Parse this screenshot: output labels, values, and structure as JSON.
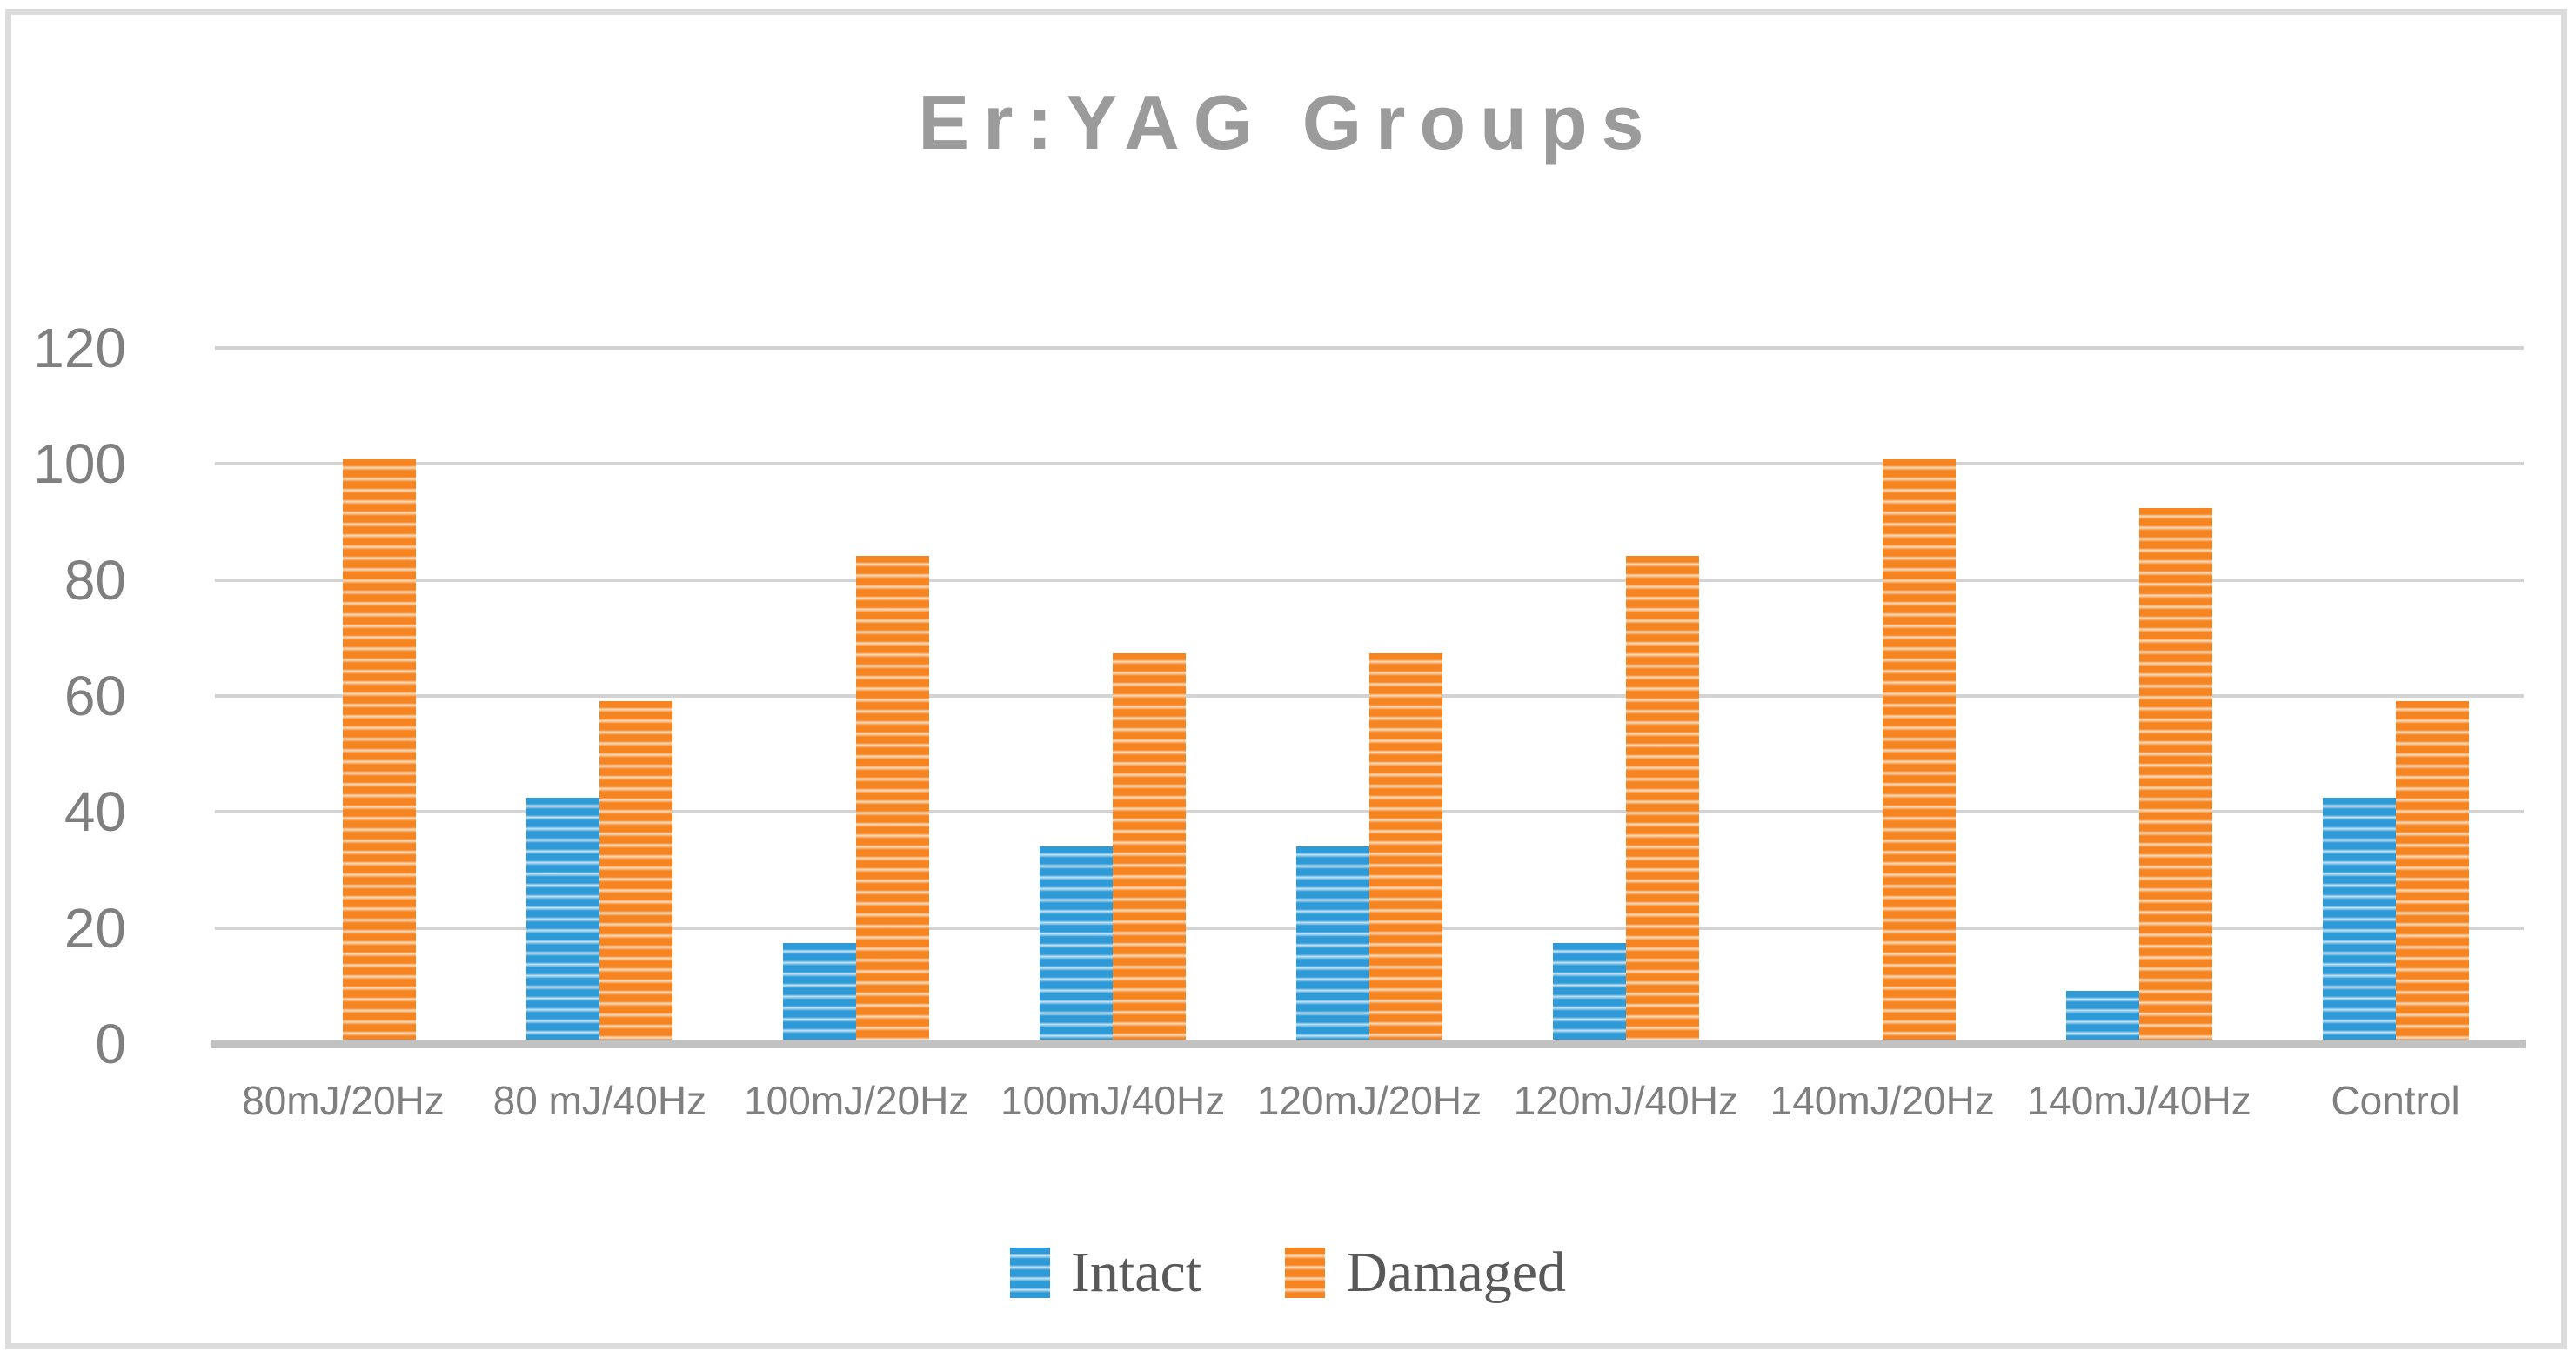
{
  "figure": {
    "title": "Er:YAG Groups"
  },
  "chart_data": {
    "type": "bar",
    "title": "Er:YAG Groups",
    "categories": [
      "80mJ/20Hz",
      "80 mJ/40Hz",
      "100mJ/20Hz",
      "100mJ/40Hz",
      "120mJ/20Hz",
      "120mJ/40Hz",
      "140mJ/20Hz",
      "140mJ/40Hz",
      "Control"
    ],
    "series": [
      {
        "name": "Intact",
        "color": "#2e9ad8",
        "stripe_light_color": "#c9e4f5",
        "values": [
          0,
          41.67,
          16.67,
          33.33,
          33.33,
          16.67,
          0,
          8.33,
          41.67
        ]
      },
      {
        "name": "Damaged",
        "color": "#f68420",
        "stripe_light_color": "#fbddc0",
        "values": [
          100,
          58.33,
          83.33,
          66.67,
          66.67,
          83.33,
          100,
          91.67,
          58.33
        ]
      }
    ],
    "xlabel": "",
    "ylabel": "",
    "ylim": [
      0,
      120
    ],
    "yticks": [
      0,
      20,
      40,
      60,
      80,
      100,
      120
    ],
    "grid": true,
    "gridline_color": "#d3d3d3",
    "axis_line_color": "#c2c2c2",
    "title_color": "#9b9b9b",
    "tick_label_color": "#7f7f7f",
    "legend_text_color": "#595959",
    "legend_position": "bottom",
    "bar_fill_style": "horizontal-stripes"
  }
}
